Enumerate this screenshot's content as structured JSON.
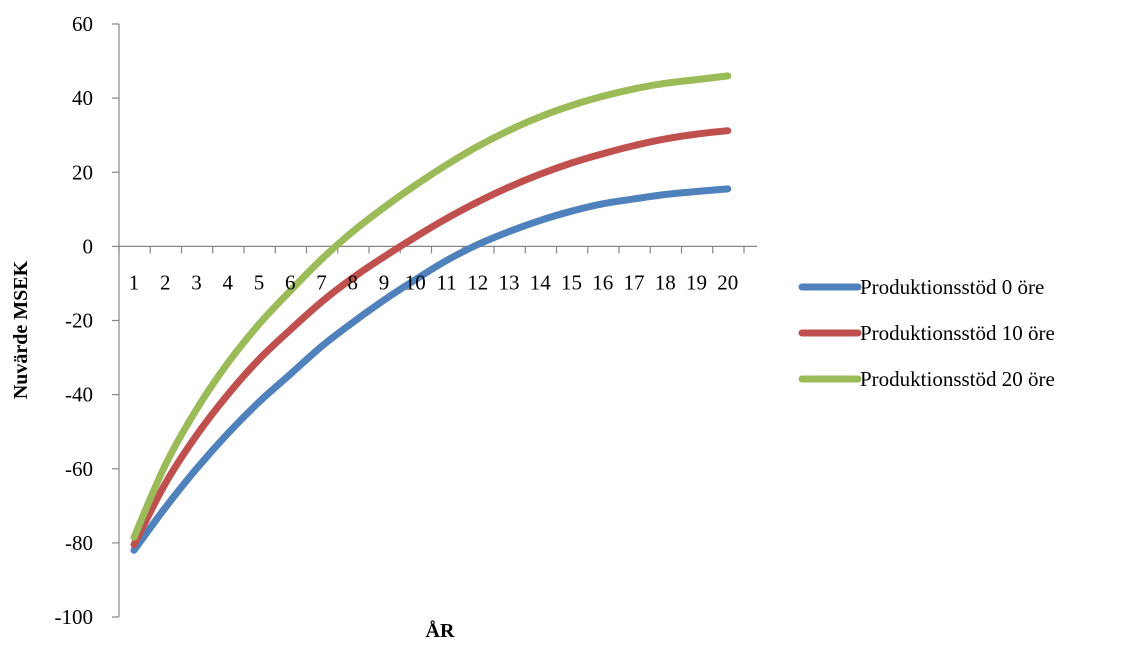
{
  "chart_data": {
    "type": "line",
    "title": "",
    "xlabel": "ÅR",
    "ylabel": "Nuvärde MSEK",
    "categories": [
      "1",
      "2",
      "3",
      "4",
      "5",
      "6",
      "7",
      "8",
      "9",
      "10",
      "11",
      "12",
      "13",
      "14",
      "15",
      "16",
      "17",
      "18",
      "19",
      "20"
    ],
    "ylim": [
      -100,
      60
    ],
    "yticks": [
      60,
      40,
      20,
      0,
      -20,
      -40,
      -60,
      -80,
      -100
    ],
    "grid": false,
    "legend_position": "right",
    "series": [
      {
        "name": "Produktionsstöd 0 öre",
        "color": "#4F81BD",
        "values": [
          -82,
          -70.5,
          -60,
          -50.5,
          -42,
          -34.5,
          -27,
          -20.5,
          -14.5,
          -9,
          -3.8,
          0.5,
          4,
          7,
          9.5,
          11.5,
          12.8,
          14,
          14.8,
          15.5
        ]
      },
      {
        "name": "Produktionsstöd 10 öre",
        "color": "#C0504D",
        "values": [
          -80.5,
          -64,
          -51,
          -40,
          -30.5,
          -22.5,
          -15,
          -8.5,
          -2.8,
          2.5,
          7.5,
          12,
          16,
          19.5,
          22.5,
          25,
          27.2,
          29,
          30.3,
          31.2
        ]
      },
      {
        "name": "Produktionsstöd 20 öre",
        "color": "#9BBB59",
        "values": [
          -78.5,
          -59,
          -44,
          -31.5,
          -21,
          -12,
          -3.5,
          4,
          10.5,
          16.5,
          22,
          27,
          31.3,
          35,
          38,
          40.5,
          42.5,
          44,
          45,
          46
        ]
      }
    ]
  }
}
